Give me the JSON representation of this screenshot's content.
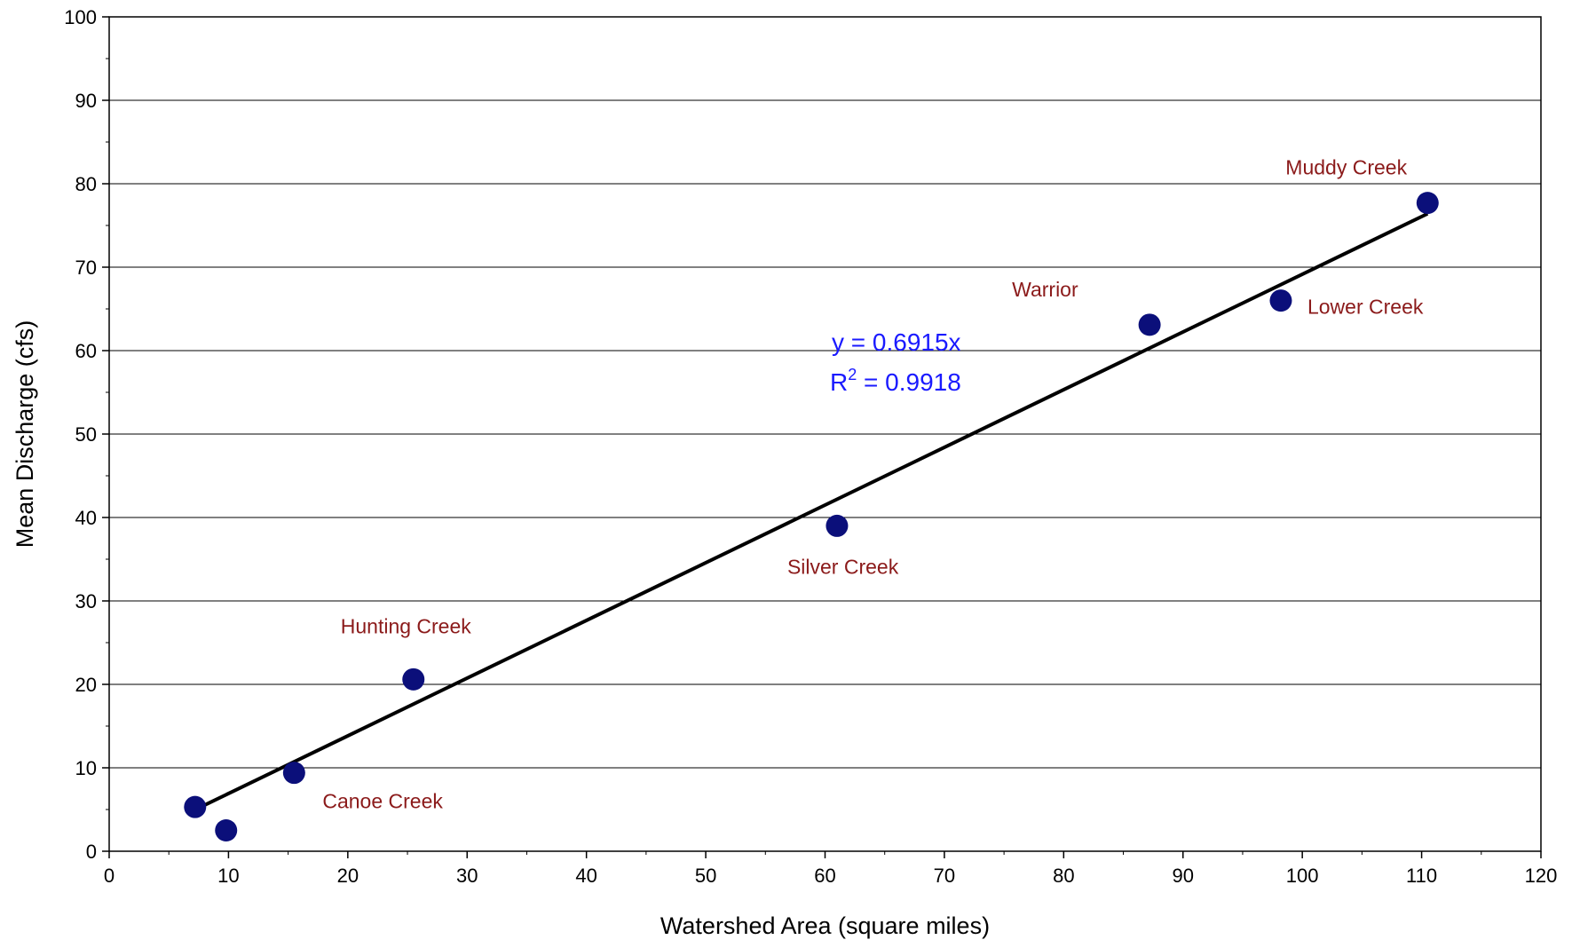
{
  "chart_data": {
    "type": "scatter",
    "title": "",
    "xlabel": "Watershed Area (square miles)",
    "ylabel": "Mean Discharge (cfs)",
    "xlim": [
      0,
      120
    ],
    "ylim": [
      0,
      100
    ],
    "xticks": [
      0,
      10,
      20,
      30,
      40,
      50,
      60,
      70,
      80,
      90,
      100,
      110,
      120
    ],
    "yticks": [
      0,
      10,
      20,
      30,
      40,
      50,
      60,
      70,
      80,
      90,
      100
    ],
    "grid": "horizontal",
    "legend": "none",
    "colors": {
      "marker": "#0b0f7a",
      "point_label": "#8b1a1a",
      "trendline": "#000000",
      "equation": "#1a1aff",
      "gridline": "#000000"
    },
    "points": [
      {
        "x": 7.2,
        "y": 5.3,
        "label": ""
      },
      {
        "x": 9.8,
        "y": 2.5,
        "label": ""
      },
      {
        "x": 15.5,
        "y": 9.4,
        "label": "Canoe Creek"
      },
      {
        "x": 25.5,
        "y": 20.6,
        "label": "Hunting Creek"
      },
      {
        "x": 61.0,
        "y": 39.0,
        "label": "Silver Creek"
      },
      {
        "x": 87.2,
        "y": 63.1,
        "label": "Warrior"
      },
      {
        "x": 98.2,
        "y": 66.0,
        "label": "Lower Creek"
      },
      {
        "x": 110.5,
        "y": 77.7,
        "label": "Muddy Creek"
      }
    ],
    "trendline": {
      "slope": 0.6915,
      "x_range": [
        7.2,
        110.5
      ],
      "equation": "y = 0.6915x",
      "r2_prefix": "R",
      "r2_superscript": "2",
      "r2_value": " = 0.9918"
    }
  }
}
